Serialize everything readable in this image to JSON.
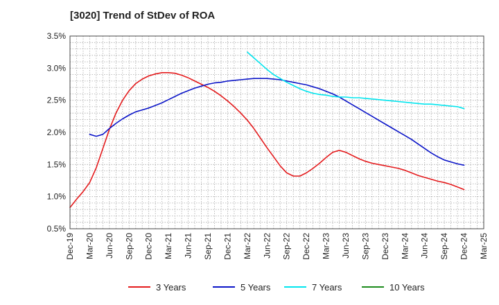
{
  "chart_data": {
    "type": "line",
    "title": "[3020]  Trend of StDev of ROA",
    "xlabel": "",
    "ylabel": "",
    "x_ticks": [
      "Dec-19",
      "Mar-20",
      "Jun-20",
      "Sep-20",
      "Dec-20",
      "Mar-21",
      "Jun-21",
      "Sep-21",
      "Dec-21",
      "Mar-22",
      "Jun-22",
      "Sep-22",
      "Dec-22",
      "Mar-23",
      "Jun-23",
      "Sep-23",
      "Dec-23",
      "Mar-24",
      "Jun-24",
      "Sep-24",
      "Dec-24",
      "Mar-25"
    ],
    "y_ticks": [
      "0.5%",
      "1.0%",
      "1.5%",
      "2.0%",
      "2.5%",
      "3.0%",
      "3.5%"
    ],
    "ylim": [
      0.5,
      3.5
    ],
    "y_unit": "%",
    "grid": true,
    "legend_position": "bottom",
    "series": [
      {
        "name": "3 Years",
        "color": "#e41a1c",
        "x": [
          "Dec-19",
          "Jan-20",
          "Feb-20",
          "Mar-20",
          "Apr-20",
          "May-20",
          "Jun-20",
          "Jul-20",
          "Aug-20",
          "Sep-20",
          "Oct-20",
          "Nov-20",
          "Dec-20",
          "Jan-21",
          "Feb-21",
          "Mar-21",
          "Apr-21",
          "May-21",
          "Jun-21",
          "Jul-21",
          "Aug-21",
          "Sep-21",
          "Oct-21",
          "Nov-21",
          "Dec-21",
          "Jan-22",
          "Feb-22",
          "Mar-22",
          "Apr-22",
          "May-22",
          "Jun-22",
          "Jul-22",
          "Aug-22",
          "Sep-22",
          "Oct-22",
          "Nov-22",
          "Dec-22",
          "Jan-23",
          "Feb-23",
          "Mar-23",
          "Apr-23",
          "May-23",
          "Jun-23",
          "Jul-23",
          "Aug-23",
          "Sep-23",
          "Oct-23",
          "Nov-23",
          "Dec-23",
          "Jan-24",
          "Feb-24",
          "Mar-24",
          "Apr-24",
          "May-24",
          "Jun-24",
          "Jul-24",
          "Aug-24",
          "Sep-24",
          "Oct-24",
          "Nov-24",
          "Dec-24"
        ],
        "values": [
          0.83,
          0.96,
          1.08,
          1.22,
          1.45,
          1.75,
          2.05,
          2.3,
          2.5,
          2.65,
          2.76,
          2.83,
          2.88,
          2.91,
          2.93,
          2.93,
          2.92,
          2.89,
          2.85,
          2.8,
          2.75,
          2.7,
          2.64,
          2.57,
          2.49,
          2.4,
          2.3,
          2.19,
          2.06,
          1.91,
          1.76,
          1.62,
          1.48,
          1.37,
          1.32,
          1.32,
          1.37,
          1.44,
          1.52,
          1.61,
          1.69,
          1.72,
          1.69,
          1.64,
          1.59,
          1.55,
          1.52,
          1.5,
          1.48,
          1.46,
          1.44,
          1.41,
          1.37,
          1.33,
          1.3,
          1.27,
          1.24,
          1.22,
          1.19,
          1.15,
          1.11
        ]
      },
      {
        "name": "5 Years",
        "color": "#0a14c8",
        "x": [
          "Mar-20",
          "Apr-20",
          "May-20",
          "Jun-20",
          "Jul-20",
          "Aug-20",
          "Sep-20",
          "Oct-20",
          "Nov-20",
          "Dec-20",
          "Jan-21",
          "Feb-21",
          "Mar-21",
          "Apr-21",
          "May-21",
          "Jun-21",
          "Jul-21",
          "Aug-21",
          "Sep-21",
          "Oct-21",
          "Nov-21",
          "Dec-21",
          "Jan-22",
          "Feb-22",
          "Mar-22",
          "Apr-22",
          "May-22",
          "Jun-22",
          "Jul-22",
          "Aug-22",
          "Sep-22",
          "Oct-22",
          "Nov-22",
          "Dec-22",
          "Jan-23",
          "Feb-23",
          "Mar-23",
          "Apr-23",
          "May-23",
          "Jun-23",
          "Jul-23",
          "Aug-23",
          "Sep-23",
          "Oct-23",
          "Nov-23",
          "Dec-23",
          "Jan-24",
          "Feb-24",
          "Mar-24",
          "Apr-24",
          "May-24",
          "Jun-24",
          "Jul-24",
          "Aug-24",
          "Sep-24",
          "Oct-24",
          "Nov-24",
          "Dec-24"
        ],
        "values": [
          1.97,
          1.94,
          1.97,
          2.06,
          2.14,
          2.21,
          2.27,
          2.32,
          2.35,
          2.38,
          2.42,
          2.46,
          2.51,
          2.56,
          2.61,
          2.65,
          2.69,
          2.72,
          2.75,
          2.77,
          2.78,
          2.8,
          2.81,
          2.82,
          2.83,
          2.84,
          2.84,
          2.84,
          2.83,
          2.82,
          2.8,
          2.78,
          2.76,
          2.74,
          2.71,
          2.68,
          2.64,
          2.6,
          2.55,
          2.49,
          2.43,
          2.37,
          2.31,
          2.25,
          2.19,
          2.13,
          2.07,
          2.01,
          1.95,
          1.89,
          1.82,
          1.75,
          1.68,
          1.62,
          1.57,
          1.54,
          1.51,
          1.49
        ]
      },
      {
        "name": "7 Years",
        "color": "#00e5ee",
        "x": [
          "Mar-22",
          "Apr-22",
          "May-22",
          "Jun-22",
          "Jul-22",
          "Aug-22",
          "Sep-22",
          "Oct-22",
          "Nov-22",
          "Dec-22",
          "Jan-23",
          "Feb-23",
          "Mar-23",
          "Apr-23",
          "May-23",
          "Jun-23",
          "Jul-23",
          "Aug-23",
          "Sep-23",
          "Oct-23",
          "Nov-23",
          "Dec-23",
          "Jan-24",
          "Feb-24",
          "Mar-24",
          "Apr-24",
          "May-24",
          "Jun-24",
          "Jul-24",
          "Aug-24",
          "Sep-24",
          "Oct-24",
          "Nov-24",
          "Dec-24"
        ],
        "values": [
          3.25,
          3.16,
          3.07,
          2.98,
          2.9,
          2.84,
          2.78,
          2.73,
          2.68,
          2.64,
          2.61,
          2.59,
          2.58,
          2.56,
          2.55,
          2.55,
          2.54,
          2.54,
          2.53,
          2.52,
          2.51,
          2.5,
          2.49,
          2.48,
          2.47,
          2.46,
          2.45,
          2.44,
          2.44,
          2.43,
          2.42,
          2.41,
          2.4,
          2.37
        ]
      },
      {
        "name": "10 Years",
        "color": "#1a8a1a",
        "x": [],
        "values": []
      }
    ]
  }
}
